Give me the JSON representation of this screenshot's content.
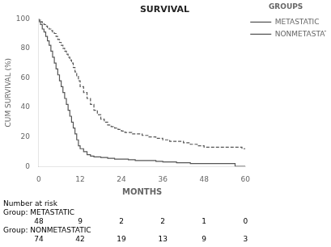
{
  "chart_data": {
    "type": "step",
    "title": "SURVIVAL",
    "xlabel": "MONTHS",
    "ylabel": "CUM SURVIVAL (%)",
    "xlim": [
      0,
      60
    ],
    "ylim": [
      0,
      100
    ],
    "xticks": [
      0,
      12,
      24,
      36,
      48,
      60
    ],
    "yticks": [
      0,
      20,
      40,
      60,
      80,
      100
    ],
    "grid": false,
    "legend": "right",
    "legend_title": "GROUPS",
    "series": [
      {
        "name": "METASTATIC",
        "color": "#555555",
        "line_style": "solid",
        "x": [
          0,
          0.5,
          1,
          1.5,
          2,
          2.5,
          3,
          3.5,
          4,
          4.5,
          5,
          5.5,
          6,
          6.5,
          7,
          7.5,
          8,
          8.5,
          9,
          9.5,
          10,
          10.5,
          11,
          11.5,
          12,
          13,
          14,
          15,
          16,
          18,
          20,
          22,
          24,
          26,
          28,
          30,
          32,
          34,
          36,
          38,
          40,
          42,
          44,
          46,
          48,
          50,
          52,
          54,
          55,
          57,
          60
        ],
        "values": [
          100,
          98,
          96,
          93,
          91,
          88,
          85,
          82,
          78,
          74,
          70,
          66,
          62,
          58,
          54,
          50,
          46,
          42,
          38,
          34,
          30,
          26,
          22,
          18,
          14,
          12,
          10,
          8,
          7,
          6.5,
          6,
          5.5,
          5,
          5,
          4.5,
          4,
          4,
          4,
          3.5,
          3,
          3,
          2.5,
          2.5,
          2,
          2,
          2,
          2,
          2,
          2,
          2,
          0
        ]
      },
      {
        "name": "NONMETASTATIC",
        "color": "#555555",
        "line_style": "dashed",
        "x": [
          0,
          0.5,
          1,
          1.5,
          2,
          2.5,
          3,
          3.5,
          4,
          4.5,
          5,
          5.5,
          6,
          6.5,
          7,
          7.5,
          8,
          8.5,
          9,
          9.5,
          10,
          10.5,
          11,
          11.5,
          12,
          13,
          14,
          15,
          16,
          17,
          18,
          19,
          20,
          21,
          22,
          23,
          24,
          25,
          26,
          27,
          28,
          29,
          30,
          32,
          34,
          36,
          38,
          40,
          42,
          44,
          46,
          48,
          50,
          52,
          54,
          56,
          57,
          59,
          60
        ],
        "values": [
          100,
          99,
          98,
          97,
          96,
          95,
          94,
          93,
          92,
          91,
          90,
          88,
          86,
          84,
          82,
          80,
          78,
          76,
          74,
          72,
          70,
          67,
          64,
          61,
          58,
          54,
          50,
          46,
          42,
          38,
          35,
          32,
          30,
          28,
          27,
          26,
          25,
          24,
          23,
          23,
          22,
          22,
          22,
          21,
          20,
          19,
          18,
          17,
          17,
          16,
          15,
          14,
          13,
          13,
          13,
          13,
          13,
          13,
          12
        ]
      }
    ],
    "risk_table": {
      "title": "Number at risk",
      "times": [
        0,
        12,
        24,
        36,
        48,
        60
      ],
      "rows": [
        {
          "name": "Group: METASTATIC",
          "values": [
            48,
            9,
            2,
            2,
            1,
            0
          ]
        },
        {
          "name": "Group: NONMETASTATIC",
          "values": [
            74,
            42,
            19,
            13,
            9,
            3
          ]
        }
      ]
    }
  }
}
